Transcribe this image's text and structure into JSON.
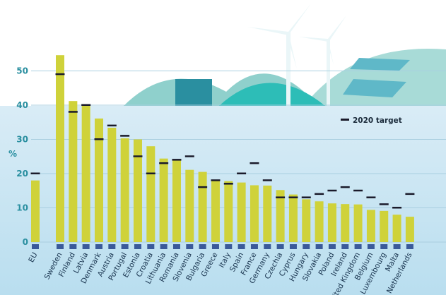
{
  "chart_data": {
    "type": "bar",
    "ylabel": "%",
    "ylim": [
      0,
      55
    ],
    "yticks": [
      0,
      10,
      20,
      30,
      40,
      50
    ],
    "grid": true,
    "legend": {
      "position": "top-right",
      "entries": [
        "2020 target"
      ]
    },
    "categories": [
      "EU",
      "Sweden",
      "Finland",
      "Latvia",
      "Denmark",
      "Austria",
      "Portugal",
      "Estonia",
      "Croatia",
      "Lithuania",
      "Romania",
      "Slovenia",
      "Bulgaria",
      "Greece",
      "Italy",
      "Spain",
      "France",
      "Germany",
      "Czechia",
      "Cyprus",
      "Hungary",
      "Slovakia",
      "Poland",
      "Ireland",
      "United Kingdom",
      "Belgium",
      "Luxembourg",
      "Malta",
      "Netherlands"
    ],
    "series": [
      {
        "name": "",
        "values": [
          18.0,
          54.6,
          41.2,
          40.3,
          36.1,
          33.4,
          30.3,
          30.0,
          28.0,
          24.4,
          23.9,
          21.1,
          20.5,
          18.0,
          17.8,
          17.4,
          16.6,
          16.5,
          15.2,
          13.9,
          12.5,
          11.9,
          11.3,
          11.1,
          11.0,
          9.4,
          9.1,
          8.0,
          7.4
        ]
      },
      {
        "name": "2020 target",
        "values": [
          20,
          49,
          38,
          40,
          30,
          34,
          31,
          25,
          20,
          23,
          24,
          25,
          16,
          18,
          17,
          20,
          23,
          18,
          13,
          13,
          13,
          14,
          15,
          16,
          15,
          13,
          11,
          10,
          14
        ]
      }
    ],
    "colors": {
      "bar_top": "#2dbdb7",
      "bar_bottom": "#cfd23a",
      "target": "#1a1a2a",
      "axis_text": "#2a8fa0"
    }
  }
}
